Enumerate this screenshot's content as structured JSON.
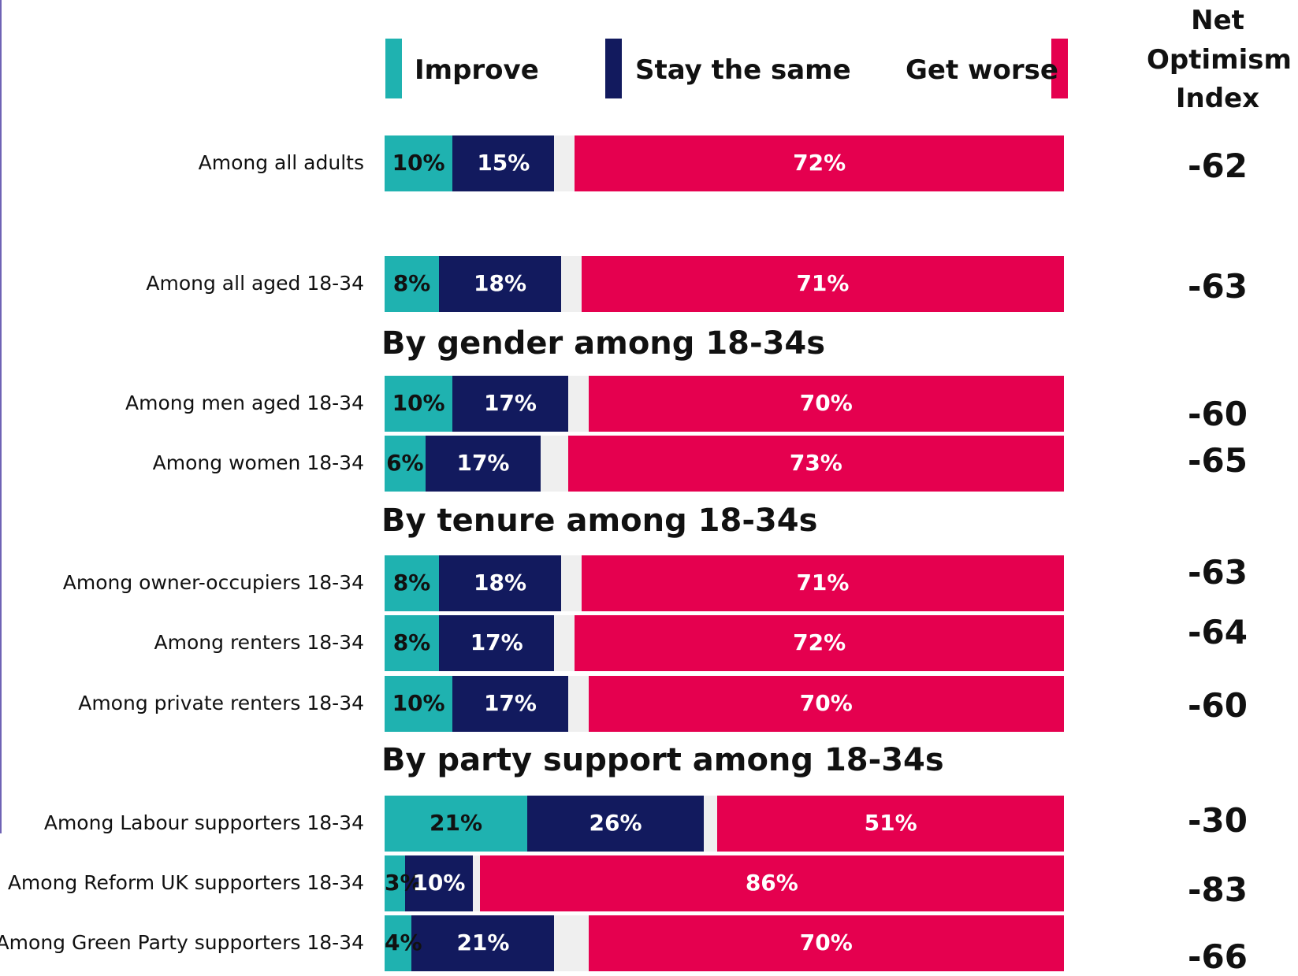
{
  "legend": {
    "improve": "Improve",
    "same": "Stay the same",
    "worse": "Get worse",
    "net_header": [
      "Net",
      "Optimism",
      "Index"
    ]
  },
  "colors": {
    "improve": "#1fb2b0",
    "same": "#121a5e",
    "other": "#efefef",
    "worse": "#e5004f",
    "edge": "#6f63b5"
  },
  "chart_data": {
    "type": "bar",
    "orientation": "horizontal",
    "stacked": true,
    "xlim": [
      0,
      100
    ],
    "series": [
      {
        "name": "Improve",
        "values": [
          10,
          8,
          10,
          6,
          8,
          8,
          10,
          21,
          3,
          4
        ]
      },
      {
        "name": "Stay the same",
        "values": [
          15,
          18,
          17,
          17,
          18,
          17,
          17,
          26,
          10,
          21
        ]
      },
      {
        "name": "Get worse",
        "values": [
          72,
          71,
          70,
          73,
          71,
          72,
          70,
          51,
          86,
          70
        ]
      }
    ],
    "sections": [
      {
        "label": ""
      },
      {
        "label": "By gender among 18-34s"
      },
      {
        "label": "By tenure among 18-34s"
      },
      {
        "label": "By party support among 18-34s"
      }
    ],
    "rows": [
      {
        "section": 0,
        "label": "Among all adults",
        "improve": 10,
        "same": 15,
        "worse": 72,
        "improve_label": "10%",
        "same_label": "15%",
        "worse_label": "72%",
        "net_label": "-62",
        "net": -62
      },
      {
        "section": 0,
        "label": "Among all aged 18-34",
        "improve": 8,
        "same": 18,
        "worse": 71,
        "improve_label": "8%",
        "same_label": "18%",
        "worse_label": "71%",
        "net_label": "-63",
        "net": -63
      },
      {
        "section": 1,
        "label": "Among men aged 18-34",
        "improve": 10,
        "same": 17,
        "worse": 70,
        "improve_label": "10%",
        "same_label": "17%",
        "worse_label": "70%",
        "net_label": "-60",
        "net": -60
      },
      {
        "section": 1,
        "label": "Among women 18-34",
        "improve": 6,
        "same": 17,
        "worse": 73,
        "improve_label": "6%",
        "same_label": "17%",
        "worse_label": "73%",
        "net_label": "-65",
        "net": -65
      },
      {
        "section": 2,
        "label": "Among owner-occupiers 18-34",
        "improve": 8,
        "same": 18,
        "worse": 71,
        "improve_label": "8%",
        "same_label": "18%",
        "worse_label": "71%",
        "net_label": "-63",
        "net": -63
      },
      {
        "section": 2,
        "label": "Among renters 18-34",
        "improve": 8,
        "same": 17,
        "worse": 72,
        "improve_label": "8%",
        "same_label": "17%",
        "worse_label": "72%",
        "net_label": "-64",
        "net": -64
      },
      {
        "section": 2,
        "label": "Among private renters 18-34",
        "improve": 10,
        "same": 17,
        "worse": 70,
        "improve_label": "10%",
        "same_label": "17%",
        "worse_label": "70%",
        "net_label": "-60",
        "net": -60
      },
      {
        "section": 3,
        "label": "Among Labour supporters 18-34",
        "improve": 21,
        "same": 26,
        "worse": 51,
        "improve_label": "21%",
        "same_label": "26%",
        "worse_label": "51%",
        "net_label": "-30",
        "net": -30
      },
      {
        "section": 3,
        "label": "Among Reform UK supporters 18-34",
        "improve": 3,
        "same": 10,
        "worse": 86,
        "improve_label": "3%",
        "same_label": "10%",
        "worse_label": "86%",
        "net_label": "-83",
        "net": -83
      },
      {
        "section": 3,
        "label": "Among Green Party supporters 18-34",
        "improve": 4,
        "same": 21,
        "worse": 70,
        "improve_label": "4%",
        "same_label": "21%",
        "worse_label": "70%",
        "net_label": "-66",
        "net": -66
      }
    ]
  }
}
